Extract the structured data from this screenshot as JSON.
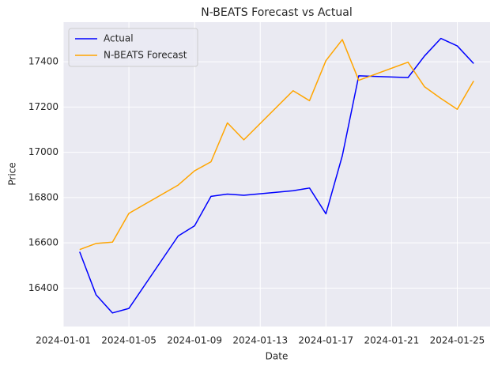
{
  "chart_data": {
    "type": "line",
    "title": "N-BEATS Forecast vs Actual",
    "x_label": "Date",
    "y_label": "Price",
    "x": [
      "2024-01-02",
      "2024-01-03",
      "2024-01-04",
      "2024-01-05",
      "2024-01-08",
      "2024-01-09",
      "2024-01-10",
      "2024-01-11",
      "2024-01-12",
      "2024-01-15",
      "2024-01-16",
      "2024-01-17",
      "2024-01-18",
      "2024-01-19",
      "2024-01-22",
      "2024-01-23",
      "2024-01-24",
      "2024-01-25",
      "2024-01-26"
    ],
    "series": [
      {
        "name": "Actual",
        "color": "#0000ff",
        "values": [
          16560,
          16370,
          16290,
          16310,
          16630,
          16675,
          16805,
          16815,
          16810,
          16830,
          16842,
          16728,
          16985,
          17338,
          17330,
          17425,
          17503,
          17470,
          17392
        ]
      },
      {
        "name": "N-BEATS Forecast",
        "color": "#ffa500",
        "values": [
          16570,
          16597,
          16603,
          16730,
          16855,
          16918,
          16958,
          17130,
          17055,
          17272,
          17228,
          17405,
          17498,
          17318,
          17398,
          17290,
          17238,
          17190,
          17315
        ]
      }
    ],
    "xlim": [
      "2024-01-01",
      "2024-01-27"
    ],
    "xticks": [
      "2024-01-01",
      "2024-01-05",
      "2024-01-09",
      "2024-01-13",
      "2024-01-17",
      "2024-01-21",
      "2024-01-25"
    ],
    "ylim": [
      16230,
      17575
    ],
    "yticks": [
      16400,
      16600,
      16800,
      17000,
      17200,
      17400
    ],
    "grid": true,
    "legend": "upper left"
  }
}
